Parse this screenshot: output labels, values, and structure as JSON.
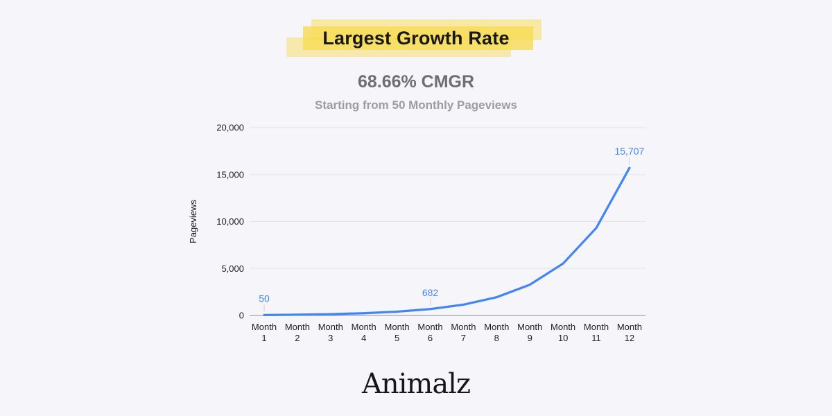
{
  "page": {
    "background_color": "#f6f5f9"
  },
  "header": {
    "title": "Largest Growth Rate",
    "highlight_color": "#f8dc52"
  },
  "chart_data": {
    "type": "line",
    "title": "68.66% CMGR",
    "subtitle": "Starting from 50 Monthly Pageviews",
    "ylabel": "Pageviews",
    "xlabel": "",
    "categories": [
      "Month 1",
      "Month 2",
      "Month 3",
      "Month 4",
      "Month 5",
      "Month 6",
      "Month 7",
      "Month 8",
      "Month 9",
      "Month 10",
      "Month 11",
      "Month 12"
    ],
    "values": [
      50,
      84,
      142,
      240,
      405,
      682,
      1151,
      1941,
      3274,
      5522,
      9313,
      15707
    ],
    "point_labels": [
      {
        "index": 0,
        "label": "50"
      },
      {
        "index": 5,
        "label": "682"
      },
      {
        "index": 11,
        "label": "15,707"
      }
    ],
    "ylim": [
      0,
      20000
    ],
    "yticks": [
      0,
      5000,
      10000,
      15000,
      20000
    ],
    "grid": true,
    "legend": "none",
    "line_color": "#4285f4",
    "grid_color": "#e5e4e9",
    "axis_line_color": "#8d8d92"
  },
  "footer": {
    "brand": "Animalz"
  }
}
